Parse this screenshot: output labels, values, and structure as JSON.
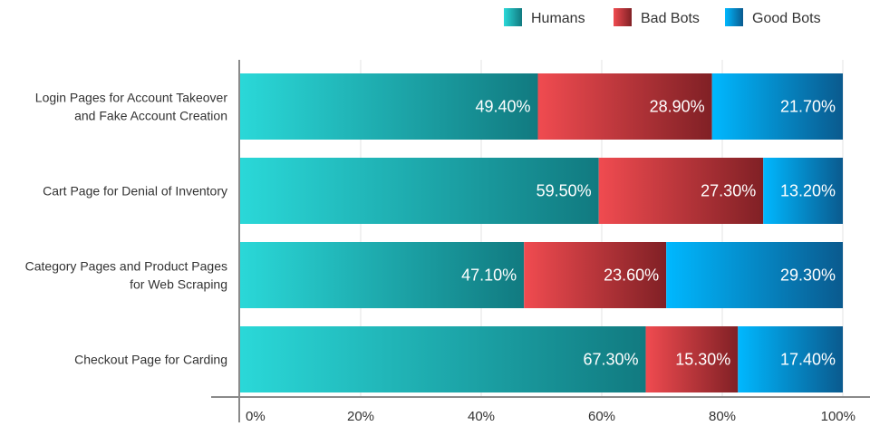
{
  "chart_data": {
    "type": "bar",
    "orientation": "horizontal",
    "stacked": true,
    "categories": [
      [
        "Login Pages for Account Takeover",
        "and Fake Account Creation"
      ],
      [
        "Cart Page for Denial of Inventory"
      ],
      [
        "Category Pages and Product Pages",
        "for Web Scraping"
      ],
      [
        "Checkout Page for Carding"
      ]
    ],
    "series": [
      {
        "name": "Humans",
        "values": [
          49.4,
          59.5,
          47.1,
          67.3
        ],
        "labels": [
          "49.40%",
          "59.50%",
          "47.10%",
          "67.30%"
        ],
        "color_start": "#2ad8d8",
        "color_end": "#117a80"
      },
      {
        "name": "Bad Bots",
        "values": [
          28.9,
          27.3,
          23.6,
          15.3
        ],
        "labels": [
          "28.90%",
          "27.30%",
          "23.60%",
          "15.30%"
        ],
        "color_start": "#f04b50",
        "color_end": "#802025"
      },
      {
        "name": "Good Bots",
        "values": [
          21.7,
          13.2,
          29.3,
          17.4
        ],
        "labels": [
          "21.70%",
          "13.20%",
          "29.30%",
          "17.40%"
        ],
        "color_start": "#00b8ff",
        "color_end": "#0a5a8e"
      }
    ],
    "x_ticks": [
      "0%",
      "20%",
      "40%",
      "60%",
      "80%",
      "100%"
    ],
    "xlim": [
      0,
      100
    ],
    "grid": "vertical",
    "legend_position": "top-right",
    "title": "",
    "xlabel": "",
    "ylabel": ""
  }
}
